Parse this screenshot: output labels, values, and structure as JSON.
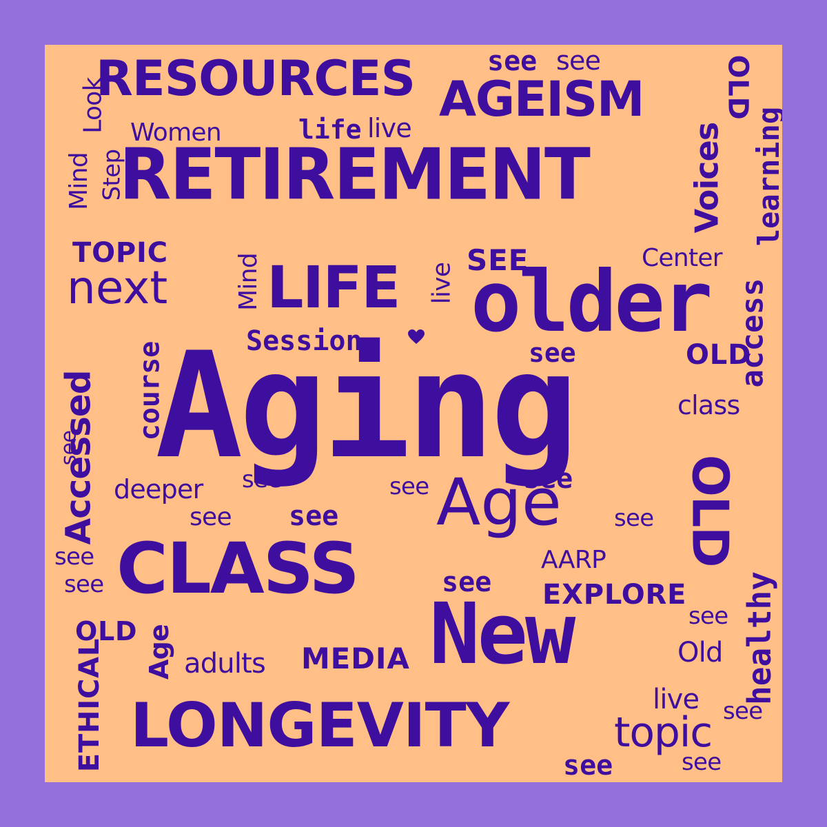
{
  "colors": {
    "frame": "#9370DB",
    "panel": "#FFBF86",
    "text": "#3E0E9E"
  },
  "words": {
    "aging": "Aging",
    "retirement": "RETIREMENT",
    "resources": "RESOURCES",
    "ageism": "AGEISM",
    "older": "older",
    "class": "CLASS",
    "new": "New",
    "longevity": "LONGEVITY",
    "life_caps": "LIFE",
    "age_large": "Age",
    "session": "Session",
    "next": "next",
    "topic_caps": "TOPIC",
    "women": "Women",
    "life": "life",
    "live_top": "live",
    "see_top_1": "see",
    "see_top_2": "see",
    "old_right_top": "OLD",
    "voices": "Voices",
    "learning": "learning",
    "look": "Look",
    "step": "Step",
    "mind_left": "Mind",
    "mind_mid": "Mind",
    "live_rot": "live",
    "see_caps": "SEE",
    "center": "Center",
    "access": "access",
    "see_mid": "see",
    "old_mid_right": "OLD",
    "class_small": "class",
    "course": "course",
    "accessed": "Accessed",
    "see_left_rot": "see",
    "deeper": "deeper",
    "see_a": "see",
    "see_b": "see",
    "see_c": "see",
    "see_d": "see",
    "see_e": "see",
    "see_f": "see",
    "old_big_rot": "OLD",
    "aarp": "AARP",
    "explore": "EXPLORE",
    "see_g": "see",
    "see_left_1": "see",
    "see_left_2": "see",
    "old_left": "OLD",
    "ethical": "ETHICAL",
    "age_small": "Age",
    "adults": "adults",
    "media": "MEDIA",
    "healthy": "healthy",
    "see_h": "see",
    "old_small": "Old",
    "live_bottom": "live",
    "see_i": "see",
    "topic": "topic",
    "see_j": "see",
    "see_k": "see"
  }
}
